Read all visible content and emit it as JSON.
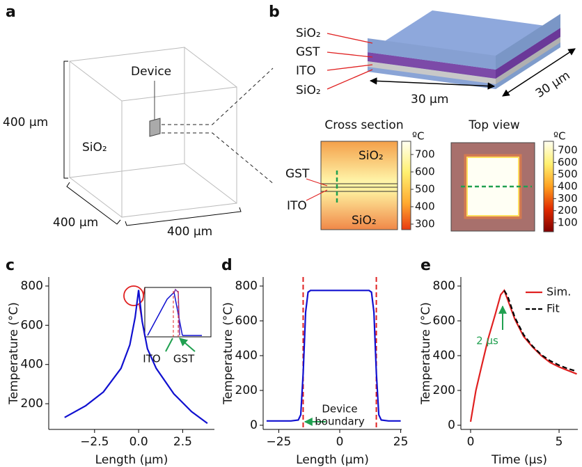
{
  "figure": {
    "panel_labels": [
      "a",
      "b",
      "c",
      "d",
      "e"
    ],
    "a": {
      "device_label": "Device",
      "material": "SiO₂",
      "dimensions": [
        "400 μm",
        "400 μm",
        "400 μm"
      ]
    },
    "b": {
      "layers": [
        "SiO₂",
        "GST",
        "ITO",
        "SiO₂"
      ],
      "dimensions": [
        "30 μm",
        "30 μm"
      ],
      "cross_section": {
        "title": "Cross section",
        "labels": [
          "SiO₂",
          "SiO₂",
          "GST",
          "ITO"
        ],
        "colorbar": {
          "unit": "ºC",
          "lim": [
            268,
            776
          ],
          "ticks": [
            300,
            400,
            500,
            600,
            700
          ]
        }
      },
      "top_view": {
        "title": "Top view",
        "colorbar": {
          "unit": "ºC",
          "lim": [
            25,
            775
          ],
          "ticks": [
            100,
            200,
            300,
            400,
            500,
            600,
            700
          ]
        }
      }
    }
  },
  "chart_data": [
    {
      "type": "line",
      "xlabel": "Length (μm)",
      "ylabel": "Temperature (°C)",
      "x": [
        -4.2,
        -3,
        -2,
        -1,
        -0.5,
        -0.2,
        0,
        0.2,
        0.5,
        1,
        2,
        3,
        3.9
      ],
      "series": [
        {
          "name": "Temperature",
          "color": "#1010d0",
          "values": [
            130,
            190,
            260,
            380,
            500,
            640,
            780,
            620,
            480,
            380,
            250,
            160,
            100
          ]
        }
      ],
      "xlim": [
        -5.1,
        4.3
      ],
      "ylim": [
        69,
        846
      ],
      "xticks": [
        {
          "value": -2.5,
          "label": "−2.5"
        },
        {
          "value": 0,
          "label": "0.0"
        },
        2.5
      ],
      "yticks": [
        200,
        400,
        600,
        800
      ],
      "annotations": [
        "ITO",
        "GST"
      ]
    },
    {
      "type": "line",
      "xlabel": "Length (μm)",
      "ylabel": "Temperature (°C)",
      "x": [
        -30,
        -20,
        -17,
        -16,
        -15,
        -14,
        -13,
        -12,
        12,
        13,
        14,
        15,
        16,
        17,
        20,
        25
      ],
      "series": [
        {
          "name": "Temperature",
          "color": "#1010d0",
          "values": [
            25,
            25,
            30,
            60,
            300,
            650,
            765,
            775,
            775,
            765,
            650,
            300,
            60,
            30,
            25,
            25
          ]
        }
      ],
      "vlines": [
        -15,
        15
      ],
      "vline_color": "#e02020",
      "xlim": [
        -31.4,
        25.4
      ],
      "ylim": [
        -24,
        852
      ],
      "xticks": [
        {
          "value": -25,
          "label": "−25"
        },
        0,
        25
      ],
      "yticks": [
        0,
        200,
        400,
        600,
        800
      ],
      "annotations": [
        "Device",
        "boundary"
      ]
    },
    {
      "type": "line",
      "xlabel": "Time (μs)",
      "ylabel": "Temperature (°C)",
      "x": [
        0,
        0.3,
        0.6,
        1,
        1.4,
        1.7,
        1.9,
        2.1,
        2.5,
        3,
        3.5,
        4,
        4.5,
        5,
        5.5,
        6
      ],
      "series": [
        {
          "name": "Sim.",
          "color": "#e02020",
          "dash": false,
          "values": [
            20,
            200,
            330,
            500,
            640,
            750,
            775,
            720,
            610,
            510,
            450,
            400,
            360,
            335,
            315,
            295
          ]
        },
        {
          "name": "Fit",
          "color": "#000000",
          "dash": true,
          "values": [
            null,
            null,
            null,
            null,
            null,
            null,
            775,
            740,
            620,
            520,
            455,
            405,
            370,
            345,
            325,
            310
          ]
        }
      ],
      "legend": "upper right",
      "xlim": [
        -0.55,
        6.06
      ],
      "ylim": [
        -24,
        852
      ],
      "xticks": [
        0,
        5
      ],
      "yticks": [
        0,
        200,
        400,
        600,
        800
      ],
      "annotations": [
        "2 μs"
      ]
    }
  ]
}
